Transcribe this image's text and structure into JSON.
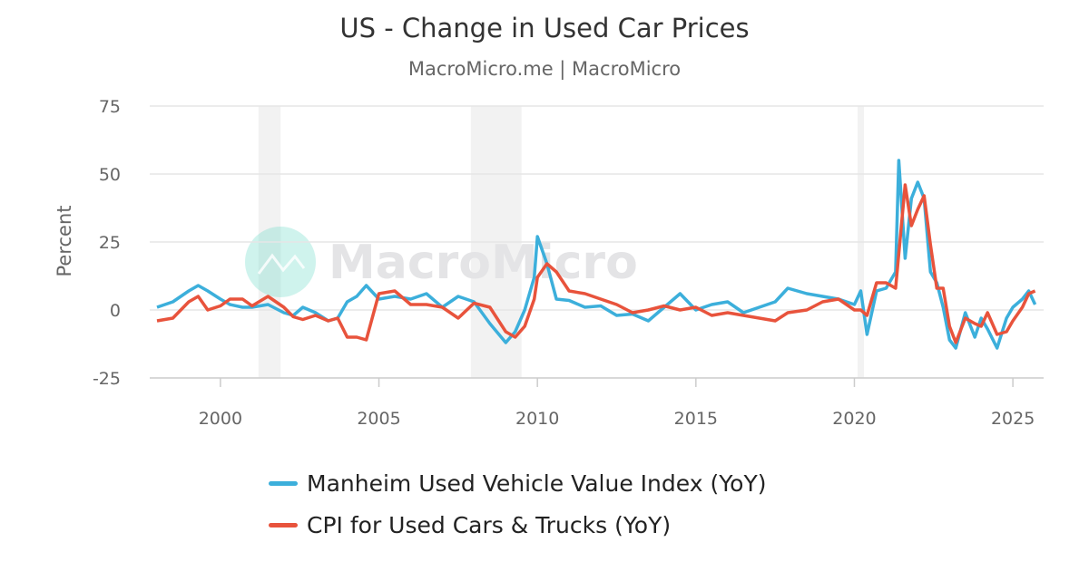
{
  "title": "US - Change in Used Car Prices",
  "subtitle": "MacroMicro.me | MacroMicro",
  "watermark": "MacroMicro",
  "chart_data": {
    "type": "line",
    "title": "US - Change in Used Car Prices",
    "ylabel": "Percent",
    "xlabel": "",
    "ylim": [
      -25,
      75
    ],
    "xlim": [
      1997.77,
      2025.97
    ],
    "yticks": [
      "75",
      "50",
      "25",
      "0",
      "-25"
    ],
    "ytick_values": [
      75,
      50,
      25,
      0,
      -25
    ],
    "xticks": [
      "2000",
      "2005",
      "2010",
      "2015",
      "2020",
      "2025"
    ],
    "xtick_values": [
      2000,
      2005,
      2010,
      2015,
      2020,
      2025
    ],
    "grid": "horizontal",
    "legend_position": "bottom",
    "recessions": [
      [
        2001.2,
        2001.9
      ],
      [
        2007.9,
        2009.5
      ],
      [
        2020.1,
        2020.3
      ]
    ],
    "series": [
      {
        "name": "Manheim Used Vehicle Value Index (YoY)",
        "color": "#3cafdb",
        "x": [
          1998.0,
          1998.5,
          1999.0,
          1999.3,
          1999.6,
          2000.0,
          2000.3,
          2000.7,
          2001.0,
          2001.5,
          2002.0,
          2002.3,
          2002.6,
          2003.0,
          2003.4,
          2003.7,
          2004.0,
          2004.3,
          2004.6,
          2005.0,
          2005.5,
          2006.0,
          2006.5,
          2007.0,
          2007.5,
          2008.0,
          2008.5,
          2009.0,
          2009.3,
          2009.6,
          2009.9,
          2010.0,
          2010.3,
          2010.6,
          2011.0,
          2011.5,
          2012.0,
          2012.5,
          2013.0,
          2013.5,
          2014.0,
          2014.5,
          2015.0,
          2015.5,
          2016.0,
          2016.5,
          2017.0,
          2017.5,
          2017.9,
          2018.5,
          2019.0,
          2019.5,
          2020.0,
          2020.2,
          2020.4,
          2020.7,
          2021.0,
          2021.3,
          2021.4,
          2021.6,
          2021.8,
          2022.0,
          2022.2,
          2022.4,
          2022.6,
          2022.8,
          2023.0,
          2023.2,
          2023.5,
          2023.8,
          2024.0,
          2024.2,
          2024.5,
          2024.8,
          2025.0,
          2025.3,
          2025.5,
          2025.7
        ],
        "values": [
          1,
          3,
          7,
          9,
          7,
          4,
          2,
          1,
          1,
          2,
          -1,
          -2,
          1,
          -1,
          -4,
          -3,
          3,
          5,
          9,
          4,
          5,
          4,
          6,
          1,
          5,
          3,
          -5,
          -12,
          -8,
          0,
          12,
          27,
          17,
          4,
          3.5,
          1,
          1.5,
          -2,
          -1.5,
          -4,
          1,
          6,
          0,
          2,
          3,
          -1,
          1,
          3,
          8,
          6,
          5,
          4,
          2,
          7,
          -9,
          7,
          8,
          14,
          55,
          19,
          41,
          47,
          41,
          14,
          10,
          1,
          -11,
          -14,
          -1,
          -10,
          -3,
          -7,
          -14,
          -3,
          1,
          4,
          7,
          2
        ]
      },
      {
        "name": "CPI for Used Cars & Trucks (YoY)",
        "color": "#e8533c",
        "x": [
          1998.0,
          1998.5,
          1999.0,
          1999.3,
          1999.6,
          2000.0,
          2000.3,
          2000.7,
          2001.0,
          2001.5,
          2002.0,
          2002.3,
          2002.6,
          2003.0,
          2003.4,
          2003.7,
          2004.0,
          2004.3,
          2004.6,
          2005.0,
          2005.5,
          2006.0,
          2006.5,
          2007.0,
          2007.5,
          2008.0,
          2008.5,
          2009.0,
          2009.3,
          2009.6,
          2009.9,
          2010.0,
          2010.3,
          2010.6,
          2011.0,
          2011.5,
          2012.0,
          2012.5,
          2013.0,
          2013.5,
          2014.0,
          2014.5,
          2015.0,
          2015.5,
          2016.0,
          2016.5,
          2017.0,
          2017.5,
          2017.9,
          2018.5,
          2019.0,
          2019.5,
          2020.0,
          2020.2,
          2020.4,
          2020.7,
          2021.0,
          2021.3,
          2021.6,
          2021.8,
          2022.0,
          2022.2,
          2022.4,
          2022.6,
          2022.8,
          2023.0,
          2023.2,
          2023.5,
          2023.8,
          2024.0,
          2024.2,
          2024.5,
          2024.8,
          2025.0,
          2025.3,
          2025.5,
          2025.7
        ],
        "values": [
          -4,
          -3,
          3,
          5,
          0,
          1.5,
          4,
          4,
          1.5,
          5,
          1,
          -2.5,
          -3.5,
          -2,
          -4,
          -3,
          -10,
          -10,
          -11,
          6,
          7,
          2,
          2,
          1,
          -3,
          2.5,
          1,
          -8,
          -10,
          -6,
          4,
          12,
          17,
          14,
          7,
          6,
          4,
          2,
          -1,
          0,
          1.5,
          0,
          1,
          -2,
          -1,
          -2,
          -3,
          -4,
          -1,
          0,
          3,
          4,
          0,
          0,
          -2,
          10,
          10,
          8,
          46,
          31,
          37,
          42,
          24,
          8,
          8,
          -6,
          -12,
          -3,
          -5,
          -6,
          -1,
          -9,
          -8,
          -4,
          1,
          6,
          7
        ]
      }
    ]
  }
}
